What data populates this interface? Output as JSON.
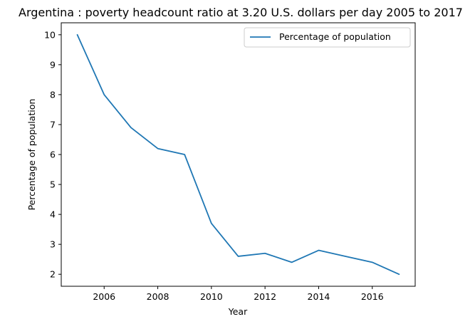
{
  "chart_data": {
    "type": "line",
    "title": "Argentina : poverty headcount ratio at 3.20 U.S. dollars per day 2005 to 2017",
    "xlabel": "Year",
    "ylabel": "Percentage of population",
    "x": [
      2005,
      2006,
      2007,
      2008,
      2009,
      2010,
      2011,
      2012,
      2013,
      2014,
      2015,
      2016,
      2017
    ],
    "series": [
      {
        "name": "Percentage of population",
        "color": "#1f77b4",
        "values": [
          10.0,
          8.0,
          6.9,
          6.2,
          6.0,
          3.7,
          2.6,
          2.7,
          2.4,
          2.8,
          2.6,
          2.4,
          2.0
        ]
      }
    ],
    "xlim": [
      2004.4,
      2017.6
    ],
    "ylim": [
      1.6,
      10.4
    ],
    "xticks": [
      2006,
      2008,
      2010,
      2012,
      2014,
      2016
    ],
    "yticks": [
      2,
      3,
      4,
      5,
      6,
      7,
      8,
      9,
      10
    ],
    "grid": false,
    "legend": "top-right"
  }
}
